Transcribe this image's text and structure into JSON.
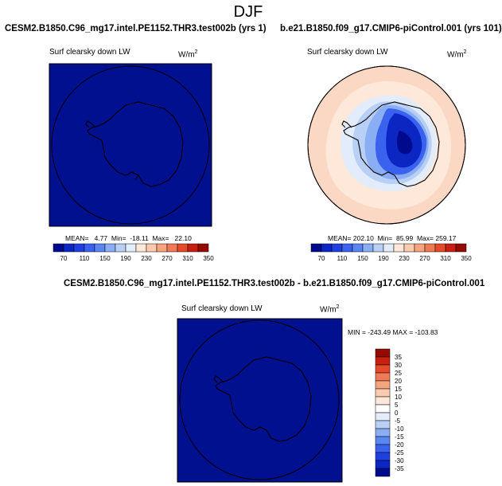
{
  "page": {
    "title": "DJF"
  },
  "panels": [
    {
      "id": "test",
      "case_title": "CESM2.B1850.C96_mg17.intel.PE1152.THR3.test002b (yrs 1)",
      "variable": "Surf clearsky down LW",
      "units_base": "W/m",
      "units_exp": "2",
      "stats": "MEAN=   4.77  Min=  -18.11  Max=   22.10"
    },
    {
      "id": "control",
      "case_title": "b.e21.B1850.f09_g17.CMIP6-piControl.001 (yrs 101)",
      "variable": "Surf clearsky down LW",
      "units_base": "W/m",
      "units_exp": "2",
      "stats": "MEAN= 202.10  Min=  85.99  Max= 259.17"
    },
    {
      "id": "diff",
      "case_title": "CESM2.B1850.C96_mg17.intel.PE1152.THR3.test002b - b.e21.B1850.f09_g17.CMIP6-piControl.001",
      "variable": "Surf clearsky down LW",
      "units_base": "W/m",
      "units_exp": "2",
      "stats": "MIN = -243.49 MAX = -103.83"
    }
  ],
  "colorbars": {
    "absolute": {
      "labels": [
        "70",
        "110",
        "150",
        "190",
        "230",
        "270",
        "310",
        "350"
      ],
      "colors": [
        "#000a8c",
        "#0c26c4",
        "#1f3fe0",
        "#3a62ee",
        "#5a86f2",
        "#8aaef4",
        "#b8cff6",
        "#e2ecfa",
        "#fde8da",
        "#fbcbb0",
        "#f6a47e",
        "#f07a55",
        "#e54a2a",
        "#c82010",
        "#960a04"
      ]
    },
    "difference": {
      "labels": [
        "35",
        "30",
        "25",
        "20",
        "15",
        "10",
        "5",
        "0",
        "-5",
        "-10",
        "-15",
        "-20",
        "-25",
        "-30",
        "-35"
      ],
      "colors": [
        "#960a04",
        "#c82010",
        "#e54a2a",
        "#f07a55",
        "#f6a47e",
        "#fbcbb0",
        "#fde8da",
        "#ffffff",
        "#e2ecfa",
        "#b8cff6",
        "#8aaef4",
        "#5a86f2",
        "#3a62ee",
        "#1f3fe0",
        "#0c26c4",
        "#000a8c"
      ]
    }
  },
  "map": {
    "fill_test": "#00108f",
    "fill_diff": "#00108f",
    "ocean_outer": "#fbd8c4",
    "ocean_mid": "#fde8da",
    "coastline": "#000000"
  }
}
